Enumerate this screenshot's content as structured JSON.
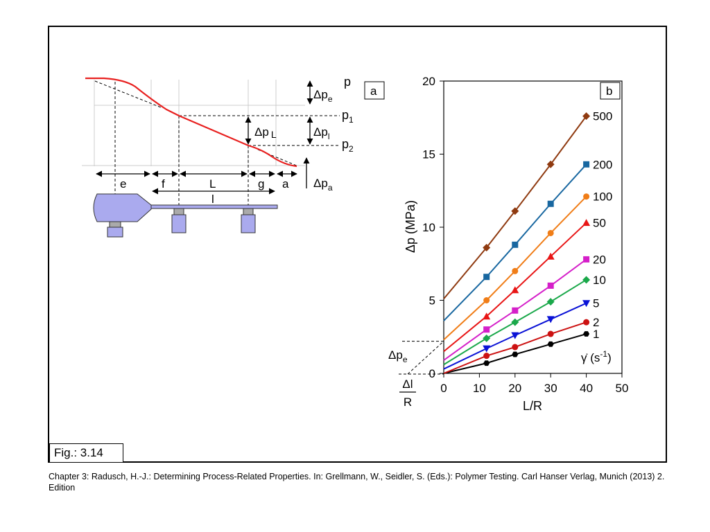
{
  "figure_label": "Fig.: 3.14",
  "caption": "Chapter 3: Radusch, H.-J.: Determining Process-Related Properties. In: Grellmann, W., Seidler, S. (Eds.): Polymer Testing. Carl Hanser Verlag, Munich (2013) 2. Edition",
  "diagram": {
    "panel_label": "a",
    "pressure_labels": {
      "p": "p",
      "p1": "p",
      "p1_sub": "1",
      "p2": "p",
      "p2_sub": "2"
    },
    "delta_labels": {
      "dpe_main": "Δp",
      "dpe_sub": "e",
      "dpL_main": "Δp",
      "dpL_sub": "L",
      "dpl_main": "Δp",
      "dpl_sub": "l",
      "dpa_main": "Δp",
      "dpa_sub": "a"
    },
    "segment_labels": {
      "e": "e",
      "f": "f",
      "L": "L",
      "g": "g",
      "a": "a",
      "l": "l"
    },
    "colors": {
      "curve": "#e8201f",
      "die": "#aaaaee"
    }
  },
  "chart_data": {
    "type": "line",
    "panel_label": "b",
    "xlabel": "L/R",
    "ylabel": "Δp (MPa)",
    "xlim": [
      0,
      50
    ],
    "ylim": [
      0,
      20
    ],
    "xticks": [
      0,
      10,
      20,
      30,
      40,
      50
    ],
    "yticks": [
      0,
      5,
      10,
      15,
      20
    ],
    "x": [
      12,
      20,
      30,
      40
    ],
    "legend_title_main": "γ̇",
    "legend_title_unit": " (s",
    "legend_title_exp": "-1",
    "legend_title_close": ")",
    "extrap_label_main": "Δp",
    "extrap_label_sub": "e",
    "intercept_label_num": "Δl",
    "intercept_label_den": "R",
    "series": [
      {
        "name": "1",
        "marker": "hexagon",
        "color": "#000000",
        "intercept": 0.0,
        "values": [
          0.7,
          1.3,
          2.0,
          2.7
        ]
      },
      {
        "name": "2",
        "marker": "circle",
        "color": "#cc1111",
        "intercept": 0.0,
        "values": [
          1.2,
          1.8,
          2.7,
          3.5
        ]
      },
      {
        "name": "5",
        "marker": "tri-down",
        "color": "#0a12d6",
        "intercept": 0.3,
        "values": [
          1.7,
          2.6,
          3.7,
          4.8
        ]
      },
      {
        "name": "10",
        "marker": "diamond",
        "color": "#1aa84a",
        "intercept": 0.6,
        "values": [
          2.4,
          3.5,
          4.9,
          6.4
        ]
      },
      {
        "name": "20",
        "marker": "square",
        "color": "#d51fc9",
        "intercept": 0.9,
        "values": [
          3.0,
          4.3,
          6.0,
          7.8
        ]
      },
      {
        "name": "50",
        "marker": "triangle",
        "color": "#e81515",
        "intercept": 1.5,
        "values": [
          3.9,
          5.7,
          8.0,
          10.3
        ]
      },
      {
        "name": "100",
        "marker": "circle",
        "color": "#f07d17",
        "intercept": 2.3,
        "values": [
          5.0,
          7.0,
          9.6,
          12.1
        ]
      },
      {
        "name": "200",
        "marker": "square",
        "color": "#1867a0",
        "intercept": 3.6,
        "values": [
          6.6,
          8.8,
          11.6,
          14.3
        ]
      },
      {
        "name": "500",
        "marker": "diamond",
        "color": "#8f3a10",
        "intercept": 5.1,
        "values": [
          8.6,
          11.1,
          14.3,
          17.6
        ]
      }
    ]
  }
}
